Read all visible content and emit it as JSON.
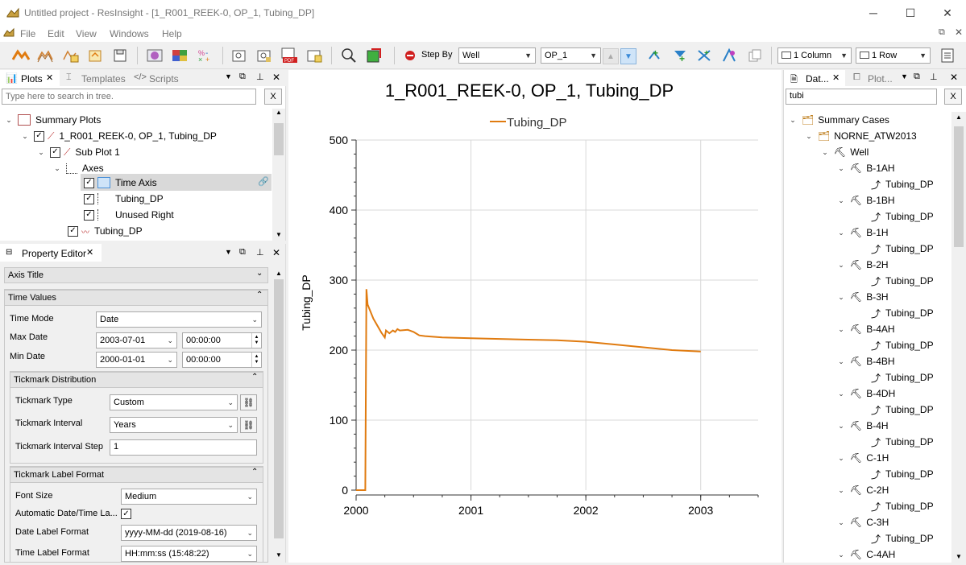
{
  "window": {
    "title": "Untitled project - ResInsight - [1_R001_REEK-0, OP_1, Tubing_DP]",
    "min": "─",
    "max": "☐",
    "close": "✕"
  },
  "menu": [
    "File",
    "Edit",
    "View",
    "Windows",
    "Help"
  ],
  "toolbar": {
    "step_by_label": "Step By",
    "step_by_value": "Well",
    "well_value": "OP_1",
    "columns_value": "1 Column",
    "rows_value": "1 Row"
  },
  "plots_panel": {
    "tabs": [
      "Plots",
      "Templates",
      "Scripts"
    ],
    "search_placeholder": "Type here to search in tree.",
    "clear": "X",
    "tree": [
      {
        "label": "Summary Plots"
      },
      {
        "label": "1_R001_REEK-0, OP_1, Tubing_DP"
      },
      {
        "label": "Sub Plot 1"
      },
      {
        "label": "Axes"
      },
      {
        "label": "Time Axis"
      },
      {
        "label": "Tubing_DP"
      },
      {
        "label": "Unused Right"
      },
      {
        "label": "Tubing_DP"
      }
    ]
  },
  "property_editor": {
    "title": "Property Editor",
    "axis_title_group": "Axis Title",
    "time_values_group": "Time Values",
    "time_mode_label": "Time Mode",
    "time_mode_value": "Date",
    "max_date_label": "Max Date",
    "max_date_value": "2003-07-01",
    "max_time_value": "00:00:00",
    "min_date_label": "Min Date",
    "min_date_value": "2000-01-01",
    "min_time_value": "00:00:00",
    "tick_dist_group": "Tickmark Distribution",
    "tick_type_label": "Tickmark Type",
    "tick_type_value": "Custom",
    "tick_interval_label": "Tickmark Interval",
    "tick_interval_value": "Years",
    "tick_step_label": "Tickmark Interval Step",
    "tick_step_value": "1",
    "tick_fmt_group": "Tickmark Label Format",
    "font_size_label": "Font Size",
    "font_size_value": "Medium",
    "auto_fmt_label": "Automatic Date/Time La...",
    "date_fmt_label": "Date Label Format",
    "date_fmt_value": "yyyy-MM-dd (2019-08-16)",
    "time_fmt_label": "Time Label Format",
    "time_fmt_value": "HH:mm:ss (15:48:22)"
  },
  "chart_data": {
    "type": "line",
    "title": "1_R001_REEK-0, OP_1, Tubing_DP",
    "ylabel": "Tubing_DP",
    "xlabel": "",
    "ylim": [
      0,
      500
    ],
    "xlim": [
      2000,
      2003.5
    ],
    "yticks": [
      0,
      100,
      200,
      300,
      400,
      500
    ],
    "xticks": [
      2000,
      2001,
      2002,
      2003
    ],
    "grid": true,
    "legend": "top",
    "series": [
      {
        "name": "Tubing_DP",
        "color": "#e07b10",
        "x": [
          2000.0,
          2000.08,
          2000.09,
          2000.1,
          2000.15,
          2000.22,
          2000.25,
          2000.26,
          2000.29,
          2000.32,
          2000.34,
          2000.36,
          2000.38,
          2000.45,
          2000.5,
          2000.53,
          2000.55,
          2000.6,
          2000.75,
          2001.0,
          2001.25,
          2001.5,
          2001.75,
          2002.0,
          2002.25,
          2002.5,
          2002.75,
          2003.0
        ],
        "y": [
          0,
          0,
          287,
          265,
          245,
          225,
          218,
          228,
          224,
          228,
          226,
          230,
          228,
          229,
          226,
          223,
          221,
          220,
          218,
          217,
          216,
          215,
          214,
          212,
          208,
          204,
          200,
          198
        ]
      }
    ]
  },
  "data_panel": {
    "tabs": [
      "Dat...",
      "Plot..."
    ],
    "search_value": "tubi",
    "clear": "X",
    "summary_cases": "Summary Cases",
    "case": "NORNE_ATW2013",
    "well": "Well",
    "wells": [
      "B-1AH",
      "B-1BH",
      "B-1H",
      "B-2H",
      "B-3H",
      "B-4AH",
      "B-4BH",
      "B-4DH",
      "B-4H",
      "C-1H",
      "C-2H",
      "C-3H",
      "C-4AH"
    ],
    "vector": "Tubing_DP"
  },
  "colors": {
    "accent": "#e07b10",
    "selection": "#cce8ff"
  }
}
